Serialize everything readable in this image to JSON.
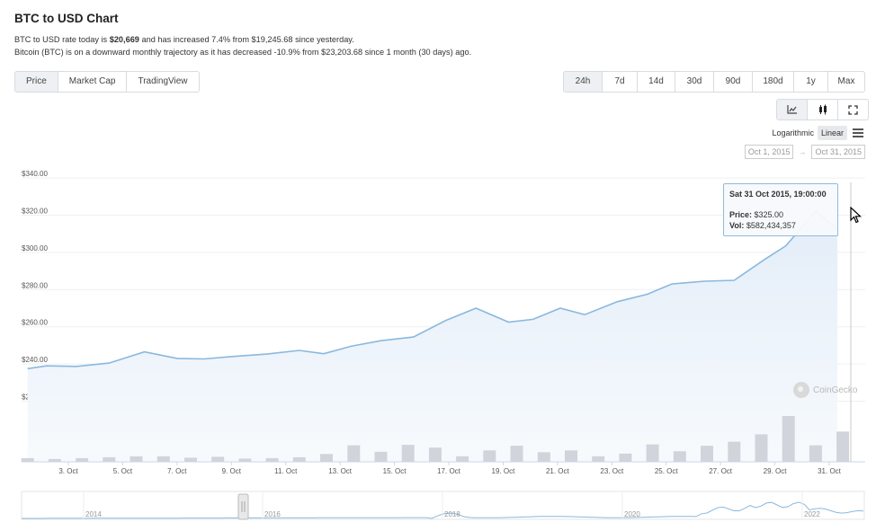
{
  "header": {
    "title": "BTC to USD Chart",
    "line1_prefix": "BTC to USD rate today is ",
    "line1_rate": "$20,669",
    "line1_suffix": " and has increased 7.4% from $19,245.68 since yesterday.",
    "line2": "Bitcoin (BTC) is on a downward monthly trajectory as it has decreased -10.9% from $23,203.68 since 1 month (30 days) ago."
  },
  "tabs": [
    "Price",
    "Market Cap",
    "TradingView"
  ],
  "active_tab": "Price",
  "ranges": [
    "24h",
    "7d",
    "14d",
    "30d",
    "90d",
    "180d",
    "1y",
    "Max"
  ],
  "active_range": "24h",
  "view_buttons": [
    "line-chart-icon",
    "candlestick-icon",
    "fullscreen-icon"
  ],
  "scale": {
    "log_label": "Logarithmic",
    "linear_label": "Linear",
    "active": "Linear"
  },
  "date_range": {
    "from": "Oct 1, 2015",
    "to": "Oct 31, 2015"
  },
  "tooltip": {
    "title": "Sat 31 Oct 2015, 19:00:00",
    "price_label": "Price:",
    "price_value": "$325.00",
    "vol_label": "Vol:",
    "vol_value": "$582,434,357"
  },
  "watermark": "CoinGecko",
  "colors": {
    "line": "#8ab8de",
    "area_top": "#e9f1fa",
    "volume": "#d1d4da",
    "active_bg": "#eef0f3"
  },
  "chart_data": {
    "type": "line",
    "title": "",
    "ylabel": "",
    "xlabel": "",
    "ylim": [
      210,
      340
    ],
    "y_ticks": [
      "$220.00",
      "$240.00",
      "$260.00",
      "$280.00",
      "$300.00",
      "$320.00",
      "$340.00"
    ],
    "y_tick_values": [
      220,
      240,
      260,
      280,
      300,
      320,
      340
    ],
    "x_ticks": [
      "3. Oct",
      "5. Oct",
      "7. Oct",
      "9. Oct",
      "11. Oct",
      "13. Oct",
      "15. Oct",
      "17. Oct",
      "19. Oct",
      "21. Oct",
      "23. Oct",
      "25. Oct",
      "27. Oct",
      "29. Oct",
      "31. Oct"
    ],
    "x_tick_days": [
      3,
      5,
      7,
      9,
      11,
      13,
      15,
      17,
      19,
      21,
      23,
      25,
      27,
      29,
      31
    ],
    "x_days": [
      1.5,
      2.2,
      3.3,
      4.5,
      5.8,
      7.0,
      8.0,
      9.2,
      10.3,
      11.5,
      12.4,
      13.4,
      14.5,
      15.7,
      16.9,
      18.0,
      19.2,
      20.1,
      21.1,
      22.0,
      23.2,
      24.3,
      25.2,
      26.4,
      27.5,
      28.6,
      29.4,
      30.5,
      31.3
    ],
    "series": [
      {
        "values": [
          237.5,
          239,
          238.7,
          240.5,
          246.5,
          243,
          242.7,
          244.2,
          245.3,
          247.3,
          245.5,
          249.5,
          252.5,
          254.5,
          263.5,
          270,
          262.5,
          264,
          270,
          266.5,
          273.5,
          277.5,
          283,
          284.5,
          285,
          296,
          303.5,
          322,
          312.5
        ]
      }
    ],
    "volume_days": [
      1.5,
      2.5,
      3.5,
      4.5,
      5.5,
      6.5,
      7.5,
      8.5,
      9.5,
      10.5,
      11.5,
      12.5,
      13.5,
      14.5,
      15.5,
      16.5,
      17.5,
      18.5,
      19.5,
      20.5,
      21.5,
      22.5,
      23.5,
      24.5,
      25.5,
      26.5,
      27.5,
      28.5,
      29.5,
      30.5,
      31.5
    ],
    "volume_values": [
      0.08,
      0.06,
      0.08,
      0.1,
      0.12,
      0.12,
      0.09,
      0.11,
      0.07,
      0.08,
      0.1,
      0.17,
      0.36,
      0.22,
      0.37,
      0.31,
      0.12,
      0.25,
      0.35,
      0.21,
      0.25,
      0.12,
      0.18,
      0.38,
      0.23,
      0.35,
      0.44,
      0.6,
      1.0,
      0.36,
      0.66
    ],
    "navigator": {
      "labels": [
        "2014",
        "2016",
        "2018",
        "2020",
        "2022"
      ]
    }
  }
}
